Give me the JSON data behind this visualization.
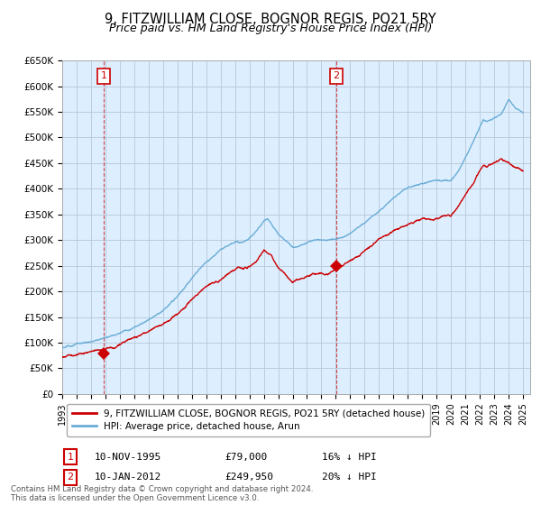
{
  "title": "9, FITZWILLIAM CLOSE, BOGNOR REGIS, PO21 5RY",
  "subtitle": "Price paid vs. HM Land Registry's House Price Index (HPI)",
  "title_fontsize": 10.5,
  "subtitle_fontsize": 9,
  "ylim": [
    0,
    650000
  ],
  "yticks": [
    0,
    50000,
    100000,
    150000,
    200000,
    250000,
    300000,
    350000,
    400000,
    450000,
    500000,
    550000,
    600000,
    650000
  ],
  "ytick_labels": [
    "£0",
    "£50K",
    "£100K",
    "£150K",
    "£200K",
    "£250K",
    "£300K",
    "£350K",
    "£400K",
    "£450K",
    "£500K",
    "£550K",
    "£600K",
    "£650K"
  ],
  "xlim_start": 1993.0,
  "xlim_end": 2025.5,
  "xtick_years": [
    1993,
    1994,
    1995,
    1996,
    1997,
    1998,
    1999,
    2000,
    2001,
    2002,
    2003,
    2004,
    2005,
    2006,
    2007,
    2008,
    2009,
    2010,
    2011,
    2012,
    2013,
    2014,
    2015,
    2016,
    2017,
    2018,
    2019,
    2020,
    2021,
    2022,
    2023,
    2024,
    2025
  ],
  "hpi_color": "#6baed6",
  "price_color": "#cc0000",
  "bg_fill_color": "#ddeeff",
  "sale1_x": 1995.9,
  "sale1_y": 79000,
  "sale1_label": "1",
  "sale2_x": 2012.04,
  "sale2_y": 249950,
  "sale2_label": "2",
  "legend_line1": "9, FITZWILLIAM CLOSE, BOGNOR REGIS, PO21 5RY (detached house)",
  "legend_line2": "HPI: Average price, detached house, Arun",
  "table_row1": [
    "1",
    "10-NOV-1995",
    "£79,000",
    "16% ↓ HPI"
  ],
  "table_row2": [
    "2",
    "10-JAN-2012",
    "£249,950",
    "20% ↓ HPI"
  ],
  "footnote": "Contains HM Land Registry data © Crown copyright and database right 2024.\nThis data is licensed under the Open Government Licence v3.0.",
  "background_color": "#ffffff",
  "grid_color": "#bbccdd",
  "annotation_box_color": "#cc0000"
}
